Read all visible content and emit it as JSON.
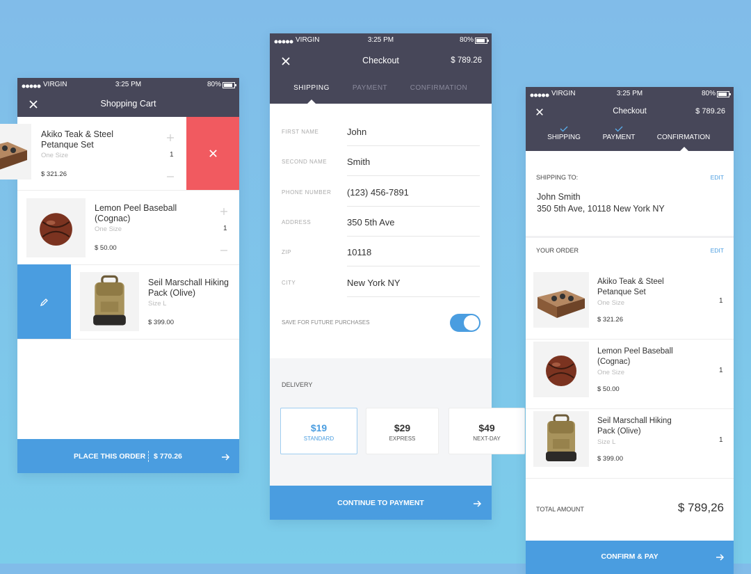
{
  "screens": [
    {
      "status": {
        "carrier": "VIRGIN",
        "time": "3:25 PM",
        "battery": "80%"
      },
      "title": "Shopping Cart",
      "items": [
        {
          "name": [
            "Akiko Teak & Steel",
            "Petanque Set"
          ],
          "variant": "One Size",
          "price": "$ 321.26",
          "qty": "1"
        },
        {
          "name": [
            "Lemon Peel Baseball",
            "(Cognac)"
          ],
          "variant": "One Size",
          "price": "$ 50.00",
          "qty": "1"
        },
        {
          "name": [
            "Seil Marschall Hiking",
            "Pack (Olive)"
          ],
          "variant": "Size L",
          "price": "$ 399.00"
        }
      ],
      "footer": {
        "action": "PLACE THIS ORDER",
        "total": "$ 770.26"
      }
    },
    {
      "status": {
        "carrier": "VIRGIN",
        "time": "3:25 PM",
        "battery": "80%"
      },
      "title": "Checkout",
      "header_total": "$ 789.26",
      "tabs": [
        "SHIPPING",
        "PAYMENT",
        "CONFIRMATION"
      ],
      "fields": [
        {
          "label": "FIRST NAME",
          "value": "John"
        },
        {
          "label": "SECOND NAME",
          "value": "Smith"
        },
        {
          "label": "PHONE NUMBER",
          "value": "(123) 456-7891"
        },
        {
          "label": "ADDRESS",
          "value": "350 5th Ave"
        },
        {
          "label": "ZIP",
          "value": "10118"
        },
        {
          "label": "CITY",
          "value": "New York NY"
        }
      ],
      "save": "SAVE FOR FUTURE PURCHASES",
      "delivery": {
        "label": "DELIVERY",
        "options": [
          {
            "price": "$19",
            "name": "STANDARD"
          },
          {
            "price": "$29",
            "name": "EXPRESS"
          },
          {
            "price": "$49",
            "name": "NEXT-DAY"
          }
        ]
      },
      "footer": {
        "action": "CONTINUE TO PAYMENT"
      }
    },
    {
      "status": {
        "carrier": "VIRGIN",
        "time": "3:25 PM",
        "battery": "80%"
      },
      "title": "Checkout",
      "header_total": "$ 789.26",
      "tabs": [
        "SHIPPING",
        "PAYMENT",
        "CONFIRMATION"
      ],
      "shipping": {
        "label": "SHIPPING TO:",
        "edit": "EDIT",
        "name": "John Smith",
        "address": "350 5th Ave, 10118 New York NY"
      },
      "order": {
        "label": "YOUR ORDER",
        "edit": "EDIT",
        "items": [
          {
            "name": [
              "Akiko Teak & Steel",
              "Petanque Set"
            ],
            "variant": "One Size",
            "price": "$ 321.26",
            "qty": "1"
          },
          {
            "name": [
              "Lemon Peel Baseball",
              "(Cognac)"
            ],
            "variant": "One Size",
            "price": "$ 50.00",
            "qty": "1"
          },
          {
            "name": [
              "Seil Marschall Hiking",
              "Pack (Olive)"
            ],
            "variant": "Size L",
            "price": "$ 399.00",
            "qty": "1"
          }
        ]
      },
      "summary": {
        "label": "TOTAL AMOUNT",
        "amount": "$ 789,26"
      },
      "footer": {
        "action": "CONFIRM & PAY"
      }
    }
  ]
}
